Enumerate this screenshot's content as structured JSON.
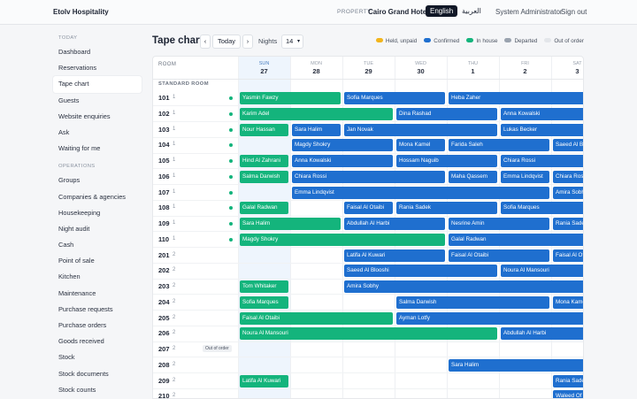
{
  "topbar": {
    "brand": "Etolv Hospitality",
    "property_label": "PROPERTY",
    "property": "Cairo Grand Hotel",
    "languages": [
      {
        "label": "English",
        "active": true
      },
      {
        "label": "العربية",
        "active": false
      }
    ],
    "user": "System Administrator",
    "signout": "Sign out"
  },
  "sidebar": {
    "active": "Tape chart",
    "sections": [
      {
        "title": "TODAY",
        "items": [
          "Dashboard",
          "Reservations",
          "Tape chart",
          "Guests",
          "Website enquiries",
          "Ask",
          "Waiting for me"
        ]
      },
      {
        "title": "OPERATIONS",
        "items": [
          "Groups",
          "Companies & agencies",
          "Housekeeping",
          "Night audit",
          "Cash",
          "Point of sale",
          "Kitchen",
          "Maintenance",
          "Purchase requests",
          "Purchase orders",
          "Goods received",
          "Stock",
          "Stock documents",
          "Stock counts"
        ]
      }
    ]
  },
  "toolbar": {
    "title": "Tape chart",
    "prev": "‹",
    "today": "Today",
    "next": "›",
    "nights_label": "Nights",
    "nights": 14
  },
  "legend": [
    {
      "label": "Held, unpaid",
      "color": "#f2b51c"
    },
    {
      "label": "Confirmed",
      "color": "#1f6fcf"
    },
    {
      "label": "In house",
      "color": "#14b47c"
    },
    {
      "label": "Departed",
      "color": "#9aa3af"
    },
    {
      "label": "Out of order",
      "color": "#e3e6ea"
    }
  ],
  "grid": {
    "room_header": "ROOM",
    "section": "STANDARD ROOM",
    "days": [
      {
        "name": "SUN",
        "date": 27,
        "today": true
      },
      {
        "name": "MON",
        "date": 28
      },
      {
        "name": "TUE",
        "date": 29
      },
      {
        "name": "WED",
        "date": 30
      },
      {
        "name": "THU",
        "date": 1
      },
      {
        "name": "FRI",
        "date": 2
      },
      {
        "name": "SAT",
        "date": 3
      }
    ],
    "rooms": [
      {
        "number": 101,
        "floor": 1,
        "clean": true,
        "bookings": [
          {
            "guest": "Yasmin Fawzy",
            "check_in": 27,
            "nights": 2,
            "status": "In house"
          },
          {
            "guest": "Sofia Marques",
            "check_in": 29,
            "nights": 2,
            "status": "Confirmed"
          },
          {
            "guest": "Heba Zaher",
            "check_in": 1,
            "nights": 4,
            "status": "Confirmed"
          }
        ]
      },
      {
        "number": 102,
        "floor": 1,
        "clean": true,
        "bookings": [
          {
            "guest": "Karim Adel",
            "check_in": 27,
            "nights": 3,
            "status": "In house"
          },
          {
            "guest": "Dina Rashad",
            "check_in": 30,
            "nights": 2,
            "status": "Confirmed"
          },
          {
            "guest": "Anna Kowalski",
            "check_in": 2,
            "nights": 3,
            "status": "Confirmed"
          }
        ]
      },
      {
        "number": 103,
        "floor": 1,
        "clean": true,
        "bookings": [
          {
            "guest": "Nour Hassan",
            "check_in": 27,
            "nights": 1,
            "status": "In house"
          },
          {
            "guest": "Sara Halim",
            "check_in": 28,
            "nights": 1,
            "status": "Confirmed"
          },
          {
            "guest": "Jan Novak",
            "check_in": 29,
            "nights": 3,
            "status": "Confirmed"
          },
          {
            "guest": "Lukas Becker",
            "check_in": 2,
            "nights": 3,
            "status": "Confirmed"
          }
        ]
      },
      {
        "number": 104,
        "floor": 1,
        "clean": true,
        "bookings": [
          {
            "guest": "Magdy Shokry",
            "check_in": 28,
            "nights": 2,
            "status": "Confirmed"
          },
          {
            "guest": "Mona Kamel",
            "check_in": 30,
            "nights": 1,
            "status": "Confirmed"
          },
          {
            "guest": "Farida Saleh",
            "check_in": 1,
            "nights": 2,
            "status": "Confirmed"
          },
          {
            "guest": "Saeed Al Blooshi",
            "check_in": 3,
            "nights": 2,
            "status": "Confirmed"
          }
        ]
      },
      {
        "number": 105,
        "floor": 1,
        "clean": true,
        "bookings": [
          {
            "guest": "Hind Al Zahrani",
            "check_in": 27,
            "nights": 1,
            "status": "In house"
          },
          {
            "guest": "Anna Kowalski",
            "check_in": 28,
            "nights": 2,
            "status": "Confirmed"
          },
          {
            "guest": "Hossam Naguib",
            "check_in": 30,
            "nights": 2,
            "status": "Confirmed"
          },
          {
            "guest": "Chiara Rossi",
            "check_in": 2,
            "nights": 2,
            "status": "Confirmed"
          }
        ]
      },
      {
        "number": 106,
        "floor": 1,
        "clean": true,
        "bookings": [
          {
            "guest": "Salma Darwish",
            "check_in": 27,
            "nights": 1,
            "status": "In house"
          },
          {
            "guest": "Chiara Rossi",
            "check_in": 28,
            "nights": 3,
            "status": "Confirmed"
          },
          {
            "guest": "Maha Qassem",
            "check_in": 1,
            "nights": 1,
            "status": "Confirmed"
          },
          {
            "guest": "Emma Lindqvist",
            "check_in": 2,
            "nights": 1,
            "status": "Confirmed"
          },
          {
            "guest": "Chiara Rossi",
            "check_in": 3,
            "nights": 2,
            "status": "Confirmed"
          }
        ]
      },
      {
        "number": 107,
        "floor": 1,
        "clean": true,
        "bookings": [
          {
            "guest": "Emma Lindqvist",
            "check_in": 28,
            "nights": 5,
            "status": "Confirmed"
          },
          {
            "guest": "Amira Sobhy",
            "check_in": 3,
            "nights": 2,
            "status": "Confirmed"
          }
        ]
      },
      {
        "number": 108,
        "floor": 1,
        "clean": true,
        "bookings": [
          {
            "guest": "Galal Radwan",
            "check_in": 27,
            "nights": 1,
            "status": "In house"
          },
          {
            "guest": "Faisal Al Otaibi",
            "check_in": 29,
            "nights": 1,
            "status": "Confirmed"
          },
          {
            "guest": "Rania Sadek",
            "check_in": 30,
            "nights": 2,
            "status": "Confirmed"
          },
          {
            "guest": "Sofia Marques",
            "check_in": 2,
            "nights": 2,
            "status": "Confirmed"
          }
        ]
      },
      {
        "number": 109,
        "floor": 1,
        "clean": true,
        "bookings": [
          {
            "guest": "Sara Halim",
            "check_in": 27,
            "nights": 2,
            "status": "In house"
          },
          {
            "guest": "Abdullah Al Harbi",
            "check_in": 29,
            "nights": 2,
            "status": "Confirmed"
          },
          {
            "guest": "Nesrine Amin",
            "check_in": 1,
            "nights": 2,
            "status": "Confirmed"
          },
          {
            "guest": "Rania Sadek",
            "check_in": 3,
            "nights": 2,
            "status": "Confirmed"
          }
        ]
      },
      {
        "number": 110,
        "floor": 1,
        "clean": true,
        "bookings": [
          {
            "guest": "Magdy Shokry",
            "check_in": 27,
            "nights": 4,
            "status": "In house"
          },
          {
            "guest": "Galal Radwan",
            "check_in": 1,
            "nights": 4,
            "status": "Confirmed"
          }
        ]
      },
      {
        "number": 201,
        "floor": 2,
        "bookings": [
          {
            "guest": "Latifa Al Kuwari",
            "check_in": 29,
            "nights": 2,
            "status": "Confirmed"
          },
          {
            "guest": "Faisal Al Otaibi",
            "check_in": 1,
            "nights": 2,
            "status": "Confirmed"
          },
          {
            "guest": "Faisal Al Otaibi",
            "check_in": 3,
            "nights": 2,
            "status": "Confirmed"
          }
        ]
      },
      {
        "number": 202,
        "floor": 2,
        "bookings": [
          {
            "guest": "Saeed Al Blooshi",
            "check_in": 29,
            "nights": 3,
            "status": "Confirmed"
          },
          {
            "guest": "Noura Al Mansouri",
            "check_in": 2,
            "nights": 2,
            "status": "Confirmed"
          }
        ]
      },
      {
        "number": 203,
        "floor": 2,
        "bookings": [
          {
            "guest": "Tom Whitaker",
            "check_in": 27,
            "nights": 1,
            "status": "In house"
          },
          {
            "guest": "Amira Sobhy",
            "check_in": 29,
            "nights": 6,
            "status": "Confirmed"
          }
        ]
      },
      {
        "number": 204,
        "floor": 2,
        "bookings": [
          {
            "guest": "Sofia Marques",
            "check_in": 27,
            "nights": 1,
            "status": "In house"
          },
          {
            "guest": "Salma Darwish",
            "check_in": 30,
            "nights": 3,
            "status": "Confirmed"
          },
          {
            "guest": "Mona Kamel",
            "check_in": 3,
            "nights": 2,
            "status": "Confirmed"
          }
        ]
      },
      {
        "number": 205,
        "floor": 2,
        "bookings": [
          {
            "guest": "Faisal Al Otaibi",
            "check_in": 27,
            "nights": 3,
            "status": "In house"
          },
          {
            "guest": "Ayman Lotfy",
            "check_in": 30,
            "nights": 5,
            "status": "Confirmed"
          }
        ]
      },
      {
        "number": 206,
        "floor": 2,
        "bookings": [
          {
            "guest": "Noura Al Mansouri",
            "check_in": 27,
            "nights": 5,
            "status": "In house"
          },
          {
            "guest": "Abdullah Al Harbi",
            "check_in": 2,
            "nights": 3,
            "status": "Confirmed"
          }
        ]
      },
      {
        "number": 207,
        "floor": 2,
        "badge": "Out of order",
        "bookings": []
      },
      {
        "number": 208,
        "floor": 2,
        "bookings": [
          {
            "guest": "Sara Halim",
            "check_in": 1,
            "nights": 4,
            "status": "Confirmed"
          }
        ]
      },
      {
        "number": 209,
        "floor": 2,
        "bookings": [
          {
            "guest": "Latifa Al Kuwari",
            "check_in": 27,
            "nights": 1,
            "status": "In house"
          },
          {
            "guest": "Rania Sadek",
            "check_in": 3,
            "nights": 2,
            "status": "Confirmed"
          }
        ]
      },
      {
        "number": 210,
        "floor": 2,
        "bookings": [
          {
            "guest": "Waleed Of",
            "check_in": 3,
            "nights": 2,
            "status": "Confirmed"
          }
        ]
      }
    ]
  }
}
